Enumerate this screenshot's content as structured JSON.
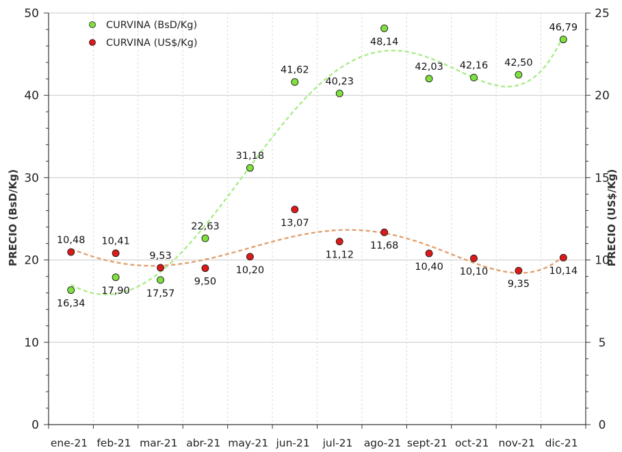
{
  "chart_data": {
    "type": "line",
    "categories": [
      "ene-21",
      "feb-21",
      "mar-21",
      "abr-21",
      "may-21",
      "jun-21",
      "jul-21",
      "ago-21",
      "sept-21",
      "oct-21",
      "nov-21",
      "dic-21"
    ],
    "series": [
      {
        "name": "CURVINA (BsD/Kg)",
        "axis": "left",
        "color": "#80e040",
        "trend_color": "#a8ec88",
        "values": [
          16.34,
          17.9,
          17.57,
          22.63,
          31.18,
          41.62,
          40.23,
          48.14,
          42.03,
          42.16,
          42.5,
          46.79
        ],
        "labels": [
          "16,34",
          "17,90",
          "17,57",
          "22,63",
          "31,18",
          "41,62",
          "40,23",
          "48,14",
          "42,03",
          "42,16",
          "42,50",
          "46,79"
        ]
      },
      {
        "name": "CURVINA (US$/Kg)",
        "axis": "right",
        "color": "#dd1a1a",
        "trend_color": "#e0a070",
        "values": [
          10.48,
          10.41,
          9.53,
          9.5,
          10.2,
          13.07,
          11.12,
          11.68,
          10.4,
          10.1,
          9.35,
          10.14
        ],
        "labels": [
          "10,48",
          "10,41",
          "9,53",
          "9,50",
          "10,20",
          "13,07",
          "11,12",
          "11,68",
          "10,40",
          "10,10",
          "9,35",
          "10,14"
        ]
      }
    ],
    "ylabel": "PRECIO (BsD/Kg)",
    "y2label": "PRECIO (US$/Kg)",
    "ylim": [
      0,
      50
    ],
    "y2lim": [
      0,
      25
    ],
    "yticks": [
      "0",
      "10",
      "20",
      "30",
      "40",
      "50"
    ],
    "y2ticks": [
      "0",
      "5",
      "10",
      "15",
      "20",
      "25"
    ],
    "grid": true,
    "legend": "top-left",
    "trendline": "polynomial"
  }
}
